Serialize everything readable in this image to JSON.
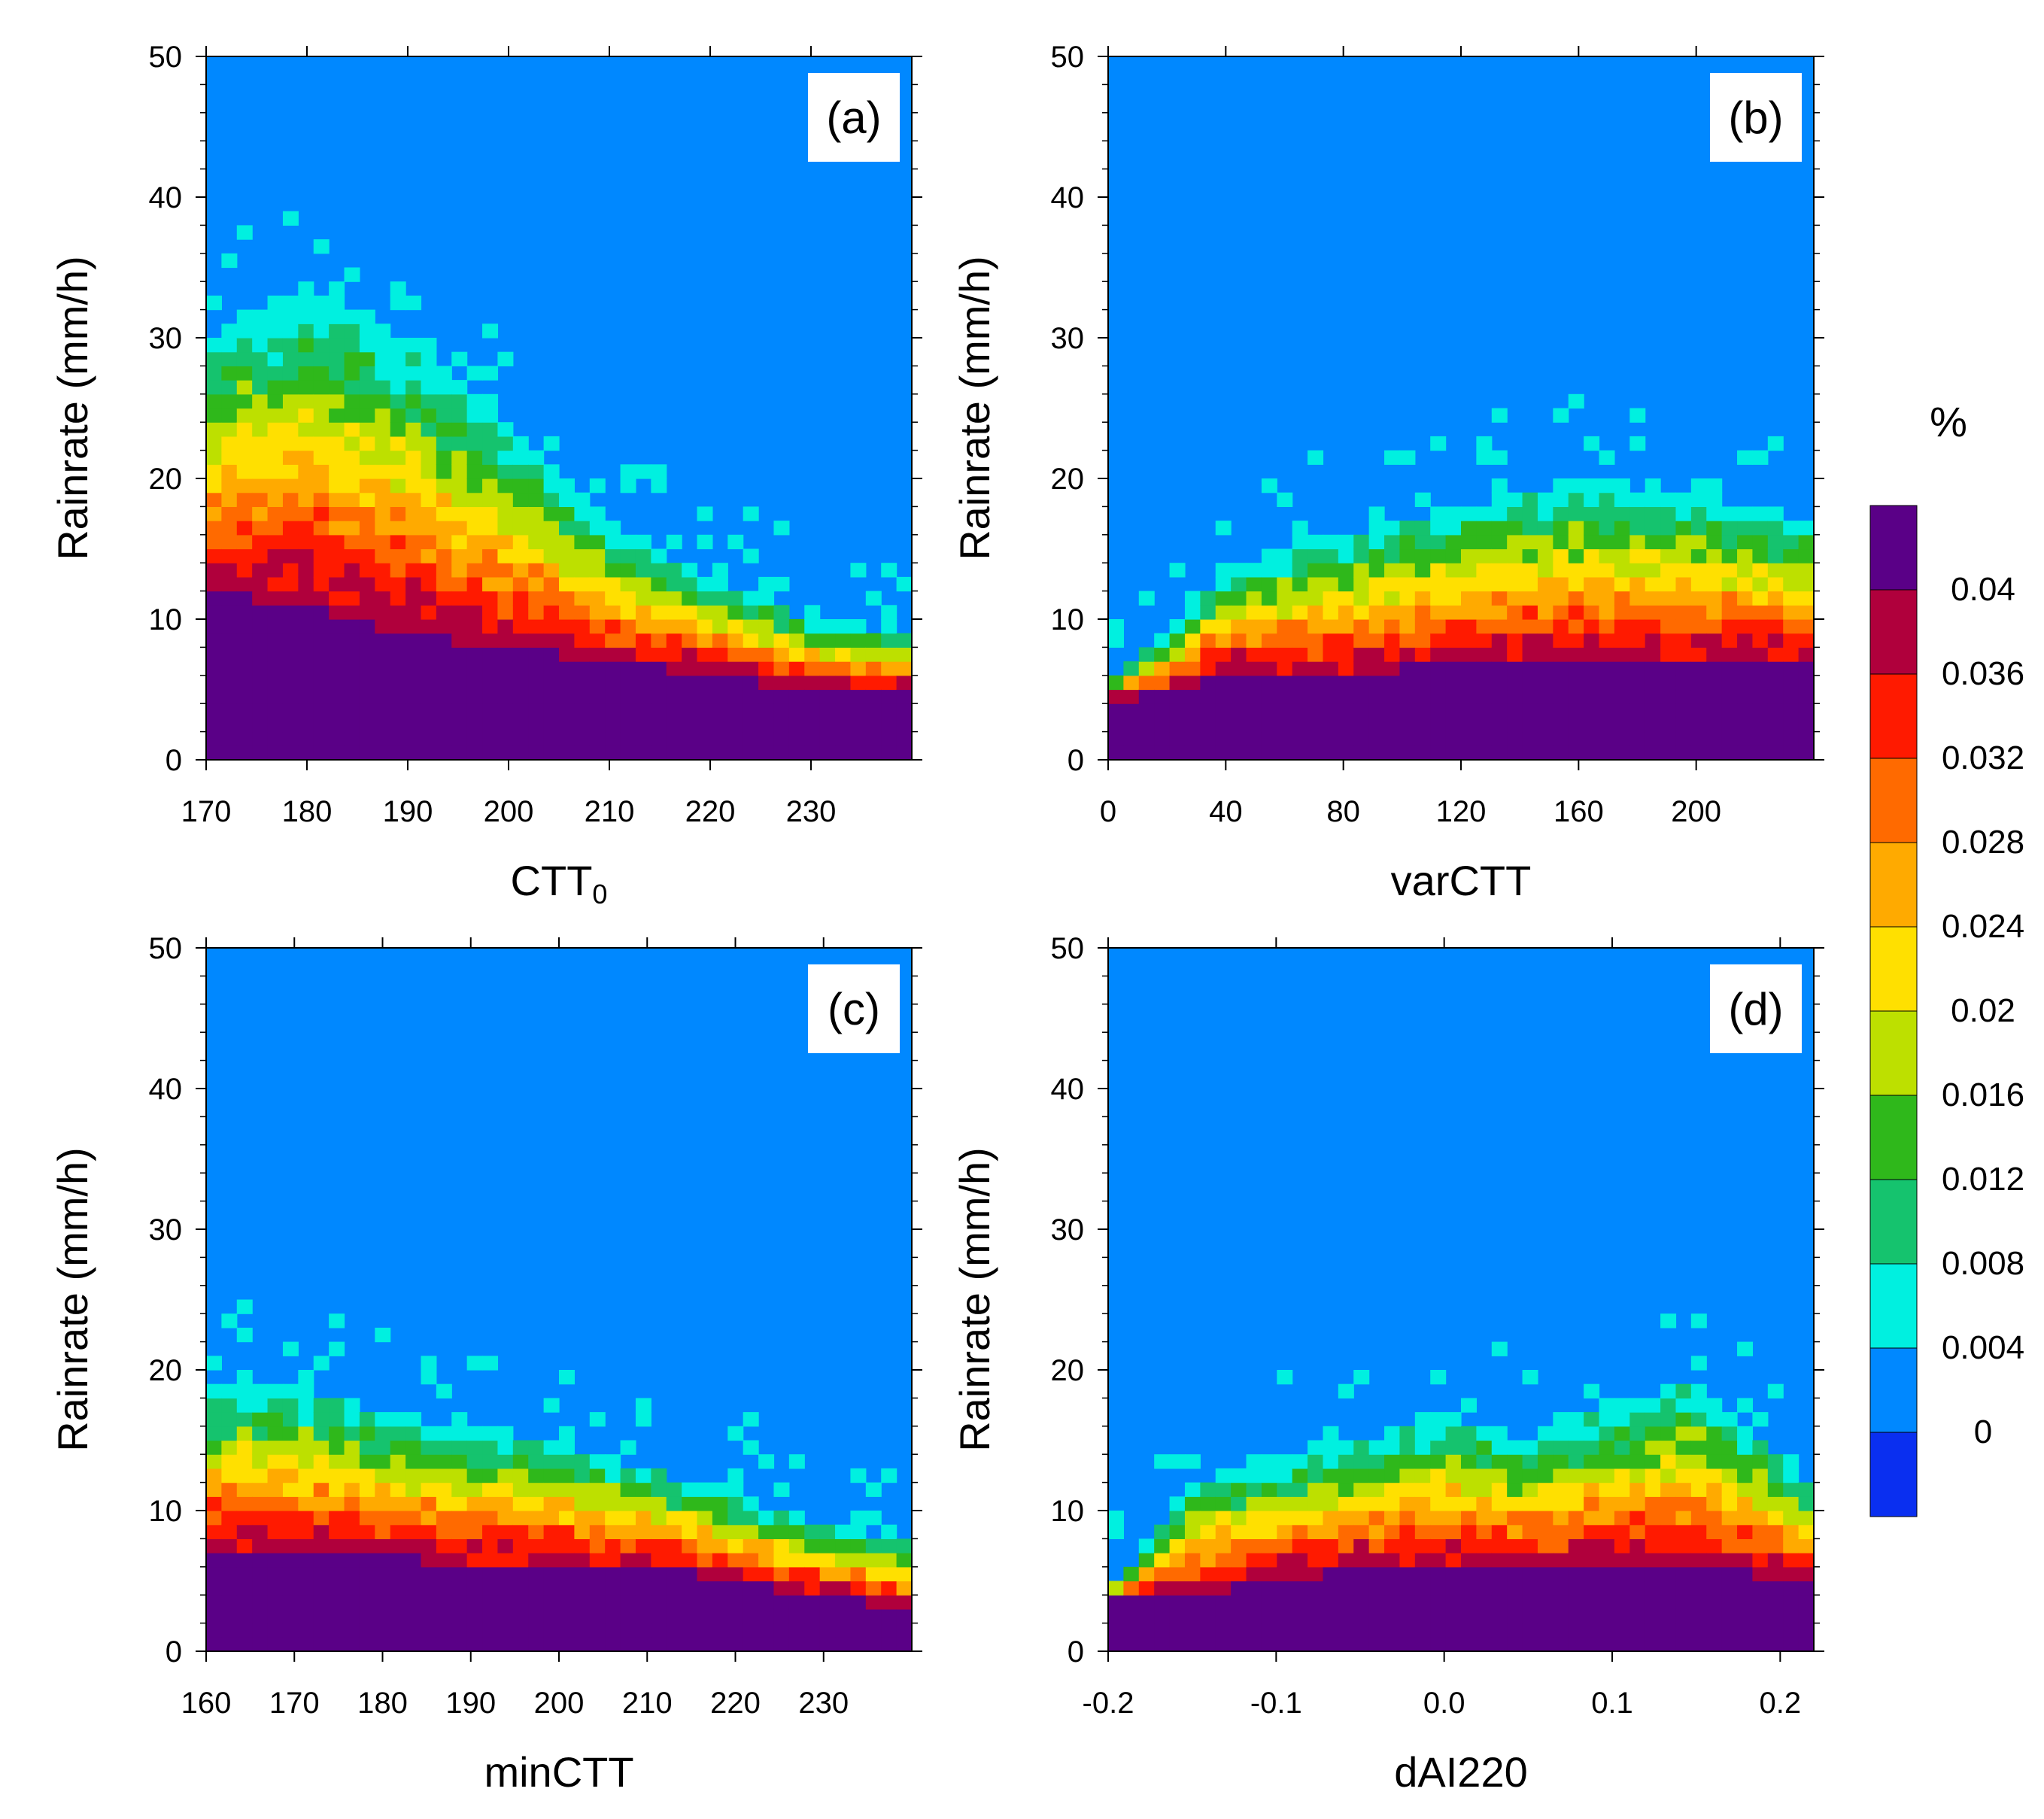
{
  "figure": {
    "colorbar": {
      "unit": "%",
      "levels": [
        "0.04",
        "0.036",
        "0.032",
        "0.028",
        "0.024",
        "0.02",
        "0.016",
        "0.012",
        "0.008",
        "0.004",
        "0"
      ],
      "colors": [
        "#5a0087",
        "#b0003c",
        "#ff1a00",
        "#ff6a00",
        "#ffaa00",
        "#ffe000",
        "#bde000",
        "#2fb81b",
        "#15c36e",
        "#00f0e0",
        "#0088ff",
        "#0a2ff0"
      ]
    }
  },
  "chart_data": [
    {
      "type": "heatmap",
      "panel": "(a)",
      "xlabel": "CTT",
      "xlabel_sub": "0",
      "ylabel": "Rainrate (mm/h)",
      "xlim": [
        170,
        240
      ],
      "ylim": [
        0,
        50
      ],
      "xticks": [
        170,
        180,
        190,
        200,
        210,
        220,
        230
      ],
      "xtick_labels": [
        "170",
        "180",
        "190",
        "200",
        "210",
        "220",
        "230"
      ],
      "yticks": [
        0,
        10,
        20,
        30,
        40,
        50
      ],
      "ytick_labels": [
        "0",
        "10",
        "20",
        "30",
        "40",
        "50"
      ],
      "description_values": {
        "dense_top_rainrate": [
          [
            170,
            30
          ],
          [
            180,
            34
          ],
          [
            190,
            30
          ],
          [
            200,
            24
          ],
          [
            210,
            17
          ],
          [
            220,
            13
          ],
          [
            230,
            10
          ],
          [
            240,
            9
          ]
        ],
        "high_freq_top_rainrate": [
          [
            170,
            12
          ],
          [
            180,
            11
          ],
          [
            190,
            9
          ],
          [
            200,
            8
          ],
          [
            210,
            7
          ],
          [
            220,
            6
          ],
          [
            230,
            5
          ],
          [
            240,
            5
          ]
        ]
      }
    },
    {
      "type": "heatmap",
      "panel": "(b)",
      "xlabel": "varCTT",
      "ylabel": "Rainrate (mm/h)",
      "xlim": [
        0,
        240
      ],
      "ylim": [
        0,
        50
      ],
      "xticks": [
        0,
        40,
        80,
        120,
        160,
        200
      ],
      "xtick_labels": [
        "0",
        "40",
        "80",
        "120",
        "160",
        "200"
      ],
      "yticks": [
        0,
        10,
        20,
        30,
        40,
        50
      ],
      "ytick_labels": [
        "0",
        "10",
        "20",
        "30",
        "40",
        "50"
      ],
      "description_values": {
        "dense_top_rainrate": [
          [
            0,
            6
          ],
          [
            20,
            9
          ],
          [
            40,
            14
          ],
          [
            80,
            16
          ],
          [
            120,
            18
          ],
          [
            160,
            20
          ],
          [
            200,
            19
          ],
          [
            240,
            17
          ]
        ],
        "high_freq_top_rainrate": [
          [
            0,
            4
          ],
          [
            20,
            5
          ],
          [
            40,
            6
          ],
          [
            80,
            6
          ],
          [
            120,
            7
          ],
          [
            160,
            7
          ],
          [
            200,
            7
          ],
          [
            240,
            7
          ]
        ]
      }
    },
    {
      "type": "heatmap",
      "panel": "(c)",
      "xlabel": "minCTT",
      "ylabel": "Rainrate (mm/h)",
      "xlim": [
        160,
        240
      ],
      "ylim": [
        0,
        50
      ],
      "xticks": [
        160,
        170,
        180,
        190,
        200,
        210,
        220,
        230
      ],
      "xtick_labels": [
        "160",
        "170",
        "180",
        "190",
        "200",
        "210",
        "220",
        "230"
      ],
      "yticks": [
        0,
        10,
        20,
        30,
        40,
        50
      ],
      "ytick_labels": [
        "0",
        "10",
        "20",
        "30",
        "40",
        "50"
      ],
      "description_values": {
        "dense_top_rainrate": [
          [
            160,
            19
          ],
          [
            170,
            19
          ],
          [
            180,
            17
          ],
          [
            190,
            16
          ],
          [
            200,
            15
          ],
          [
            210,
            13
          ],
          [
            220,
            11
          ],
          [
            230,
            9
          ],
          [
            240,
            8
          ]
        ],
        "high_freq_top_rainrate": [
          [
            160,
            7
          ],
          [
            170,
            7
          ],
          [
            180,
            7
          ],
          [
            190,
            6
          ],
          [
            200,
            6
          ],
          [
            210,
            6
          ],
          [
            220,
            5
          ],
          [
            230,
            4
          ],
          [
            240,
            3
          ]
        ]
      }
    },
    {
      "type": "heatmap",
      "panel": "(d)",
      "xlabel": "dAI220",
      "ylabel": "Rainrate (mm/h)",
      "xlim": [
        -0.2,
        0.22
      ],
      "ylim": [
        0,
        50
      ],
      "xticks": [
        -0.2,
        -0.1,
        0.0,
        0.1,
        0.2
      ],
      "xtick_labels": [
        "-0.2",
        "-0.1",
        "0.0",
        "0.1",
        "0.2"
      ],
      "yticks": [
        0,
        10,
        20,
        30,
        40,
        50
      ],
      "ytick_labels": [
        "0",
        "10",
        "20",
        "30",
        "40",
        "50"
      ],
      "description_values": {
        "dense_top_rainrate": [
          [
            -0.2,
            4
          ],
          [
            -0.15,
            12
          ],
          [
            -0.1,
            14
          ],
          [
            -0.05,
            15
          ],
          [
            0.0,
            17
          ],
          [
            0.05,
            15
          ],
          [
            0.1,
            18
          ],
          [
            0.15,
            19
          ],
          [
            0.22,
            12
          ]
        ],
        "high_freq_top_rainrate": [
          [
            -0.2,
            4
          ],
          [
            -0.15,
            4
          ],
          [
            -0.1,
            5
          ],
          [
            -0.05,
            6
          ],
          [
            0.0,
            6
          ],
          [
            0.05,
            6
          ],
          [
            0.1,
            6
          ],
          [
            0.15,
            6
          ],
          [
            0.22,
            5
          ]
        ]
      }
    }
  ]
}
